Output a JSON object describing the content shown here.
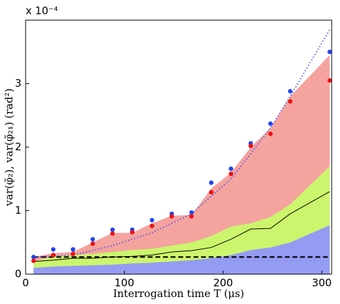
{
  "chart_data": {
    "type": "line",
    "xlabel": "Interrogation time T (μs)",
    "ylabel": "var(φ̃₂), var(φ̃₂₁) (rad²)",
    "y_multiplier": "x 10⁻⁴",
    "xlim": [
      0,
      310
    ],
    "ylim": [
      0,
      4
    ],
    "xticks": [
      0,
      100,
      200,
      300
    ],
    "yticks": [
      0,
      1,
      2,
      3
    ],
    "series": [
      {
        "style": "area",
        "color": "#f5a39f",
        "x": [
          8,
          28,
          48,
          68,
          88,
          108,
          128,
          148,
          168,
          188,
          208,
          228,
          248,
          268,
          308
        ],
        "values": [
          0.27,
          0.33,
          0.35,
          0.5,
          0.65,
          0.65,
          0.8,
          0.92,
          0.93,
          1.35,
          1.6,
          2.0,
          2.3,
          2.8,
          3.45
        ]
      },
      {
        "style": "area",
        "color": "#ccf56e",
        "x": [
          8,
          28,
          48,
          68,
          88,
          108,
          128,
          148,
          168,
          188,
          208,
          228,
          248,
          268,
          308
        ],
        "values": [
          0.2,
          0.28,
          0.3,
          0.32,
          0.35,
          0.38,
          0.4,
          0.45,
          0.5,
          0.6,
          0.75,
          0.8,
          0.9,
          1.1,
          1.7
        ]
      },
      {
        "style": "area",
        "color": "#959bf2",
        "x": [
          8,
          28,
          48,
          68,
          88,
          108,
          128,
          148,
          168,
          188,
          208,
          228,
          248,
          268,
          308
        ],
        "values": [
          0.1,
          0.12,
          0.13,
          0.14,
          0.15,
          0.17,
          0.18,
          0.2,
          0.22,
          0.25,
          0.3,
          0.38,
          0.42,
          0.5,
          0.77
        ]
      },
      {
        "style": "line",
        "color": "#000000",
        "x": [
          8,
          28,
          48,
          68,
          88,
          108,
          128,
          148,
          168,
          188,
          208,
          228,
          248,
          268,
          308
        ],
        "values": [
          0.2,
          0.22,
          0.25,
          0.25,
          0.27,
          0.28,
          0.3,
          0.35,
          0.37,
          0.42,
          0.55,
          0.71,
          0.72,
          0.95,
          1.3
        ]
      },
      {
        "style": "dashed",
        "color": "#000000",
        "x": [
          8,
          308
        ],
        "values": [
          0.27,
          0.27
        ]
      },
      {
        "style": "dotted",
        "color": "#4455ee",
        "x": [
          8,
          48,
          88,
          128,
          168,
          208,
          248,
          268,
          308
        ],
        "values": [
          0.27,
          0.3,
          0.45,
          0.65,
          0.95,
          1.5,
          2.3,
          2.8,
          3.85
        ]
      },
      {
        "style": "scatter",
        "color": "#2244ee",
        "x": [
          8,
          28,
          48,
          68,
          88,
          108,
          128,
          148,
          168,
          188,
          208,
          228,
          248,
          268,
          308
        ],
        "values": [
          0.27,
          0.39,
          0.39,
          0.55,
          0.7,
          0.7,
          0.85,
          0.95,
          0.97,
          1.44,
          1.66,
          2.06,
          2.37,
          2.88,
          3.5
        ]
      },
      {
        "style": "scatter",
        "color": "#ee1111",
        "x": [
          8,
          28,
          48,
          68,
          88,
          108,
          128,
          148,
          168,
          188,
          208,
          228,
          248,
          268,
          308
        ],
        "values": [
          0.21,
          0.3,
          0.32,
          0.48,
          0.64,
          0.66,
          0.76,
          0.91,
          0.91,
          1.29,
          1.58,
          2.02,
          2.21,
          2.72,
          3.05
        ]
      }
    ]
  }
}
